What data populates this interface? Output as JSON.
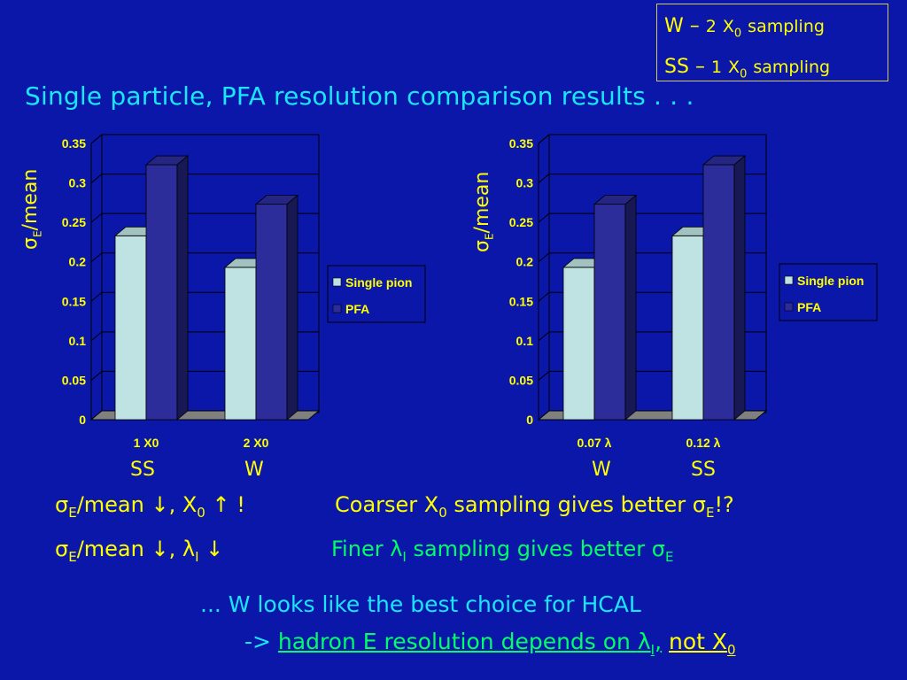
{
  "legend_box": {
    "line1": {
      "material": "W",
      "dash": "–",
      "num": "2",
      "x": "X",
      "sub": "0",
      "word": "sampling"
    },
    "line2": {
      "material": "SS",
      "dash": "–",
      "num": "1",
      "x": "X",
      "sub": "0",
      "word": "sampling"
    }
  },
  "title": "Single particle, PFA resolution comparison results . . .",
  "colors": {
    "background": "#0b17a8",
    "single_pion": "#bfe3e3",
    "pfa": "#2c2c9a",
    "yellow": "#ffff00",
    "green": "#00ff66",
    "cyan": "#19e6ff"
  },
  "chart_data": [
    {
      "type": "bar",
      "ylabel": {
        "sigma": "σ",
        "sub": "E",
        "rest": "/mean"
      },
      "ylim": [
        0,
        0.35
      ],
      "yticks": [
        "0",
        "0.05",
        "0.1",
        "0.15",
        "0.2",
        "0.25",
        "0.3",
        "0.35"
      ],
      "categories": [
        "1 X0",
        "2 X0"
      ],
      "category_notes": [
        "SS",
        "W"
      ],
      "series": [
        {
          "name": "Single pion",
          "values": [
            0.233,
            0.193
          ]
        },
        {
          "name": "PFA",
          "values": [
            0.323,
            0.273
          ]
        }
      ],
      "legend": "right"
    },
    {
      "type": "bar",
      "ylabel": {
        "sigma": "σ",
        "sub": "E",
        "rest": "/mean"
      },
      "ylim": [
        0,
        0.35
      ],
      "yticks": [
        "0",
        "0.05",
        "0.1",
        "0.15",
        "0.2",
        "0.25",
        "0.3",
        "0.35"
      ],
      "categories": [
        "0.07 λ",
        "0.12 λ"
      ],
      "category_notes": [
        "W",
        "SS"
      ],
      "series": [
        {
          "name": "Single pion",
          "values": [
            0.193,
            0.233
          ]
        },
        {
          "name": "PFA",
          "values": [
            0.273,
            0.323
          ]
        }
      ],
      "legend": "right"
    }
  ],
  "conclusions": {
    "line1": {
      "sigma": "σ",
      "sub_e": "E",
      "text": "/mean ↓, X",
      "sub_0": "0",
      "arrow": " ↑ !",
      "right_text": "Coarser X",
      "right_sub": "0",
      "right_mid": " sampling gives better ",
      "right_sigma": "σ",
      "right_sub_e": "E",
      "right_end": "!?"
    },
    "line2": {
      "sigma": "σ",
      "sub_e": "E",
      "text": "/mean ↓, ",
      "lambda": "λ",
      "sub_i": "I",
      "arrow": " ↓",
      "right_text": "Finer ",
      "right_lambda": "λ",
      "right_sub": "I",
      "right_mid": " sampling gives better ",
      "right_sigma": "σ",
      "right_sub_e": "E"
    },
    "line3": "...  W looks like the best choice for HCAL",
    "line4": {
      "arrow": "->",
      "text": "hadron E resolution depends on ",
      "lambda": "λ",
      "sub_i": "I",
      "comma": ",",
      "not_text": "not X",
      "not_sub": "0"
    }
  }
}
